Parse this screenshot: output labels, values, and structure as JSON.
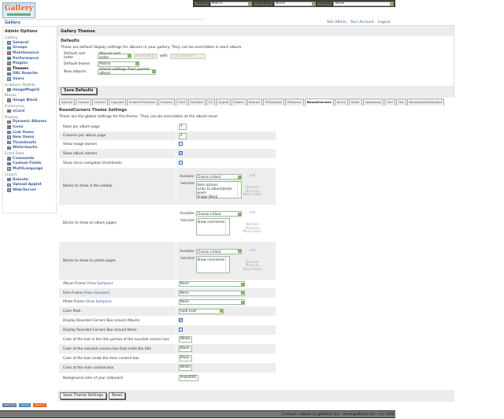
{
  "topbar": {
    "theme_label": "Theme",
    "theme_value": "Matrix",
    "colorpack_label": "ColorPack",
    "colorpack_value": "None",
    "frames_label": "Frames",
    "frames_value": "None"
  },
  "logo_text": "Gallery",
  "breadcrumb": "Gallery",
  "system_links": [
    "Site Admin",
    "Your Account",
    "Logout"
  ],
  "sidebar": {
    "title": "Admin Options",
    "groups": [
      {
        "label": "Gallery",
        "items": [
          "General",
          "Groups",
          "Maintenance",
          "Performance",
          "Plugins",
          "Themes",
          "URL Rewrite",
          "Users"
        ]
      },
      {
        "label": "Graphics Toolkits",
        "items": [
          "ImageMagick"
        ]
      },
      {
        "label": "Blocks",
        "items": [
          "Image Block"
        ]
      },
      {
        "label": "Commerce",
        "items": [
          "eCard"
        ]
      },
      {
        "label": "Display",
        "items": [
          "Dynamic Albums",
          "Icons",
          "Link Items",
          "New Items",
          "Thumbnails",
          "Watermarks"
        ]
      },
      {
        "label": "Extra Data",
        "items": [
          "Comments",
          "Custom Fields",
          "MultiLanguage"
        ]
      },
      {
        "label": "Import",
        "items": [
          "Remote",
          "Upload Applet",
          "Web/Server"
        ]
      }
    ],
    "current": "Themes"
  },
  "page_title": "Gallery Themes",
  "defaults": {
    "heading": "Defaults",
    "description": "These are default display settings for albums in your gallery. They can be overridden in each album.",
    "sort_label": "Default sort order",
    "sort_value": "Manual sort order",
    "sort_dir": "Ascending",
    "with_label": "with",
    "with_value": "« no presort »",
    "theme_label": "Default theme",
    "theme_value": "Matrix",
    "new_label": "New albums",
    "new_value": "Inherit settings from parent album",
    "save": "Save Defaults"
  },
  "tabs": [
    "Ajaxian",
    "Carbon",
    "Classic",
    "Copyleft",
    "EclecticThemeds",
    "Floatrix",
    "Fluid",
    "PortSale",
    "G1",
    "Hybrid",
    "Matrix",
    "Nature",
    "PGlightbox",
    "PGtheme",
    "RoundCorners",
    "Siriux",
    "Slider",
    "Splatbang",
    "Tion",
    "Tile",
    "WordpressEmbedded"
  ],
  "active_tab": "RoundCorners",
  "theme_settings": {
    "heading": "RoundCorners Theme Settings",
    "description": "These are the global settings for the theme. They can be overridden at the album level.",
    "rows_label": "Rows per album page",
    "rows_value": "3",
    "cols_label": "Columns per album page",
    "cols_value": "3",
    "image_owners_label": "Show image owners",
    "image_owners": false,
    "album_owners_label": "Show album owners",
    "album_owners": true,
    "micro_label": "Show micro navigation thumbnails",
    "micro": false,
    "block_available": "Available",
    "block_selected": "Selected",
    "choose": "Choose a block",
    "add": "Add",
    "remove": "Remove",
    "move_up": "Move Up",
    "move_down": "Move Down",
    "sidebar_blocks_label": "Blocks to show in the sidebar",
    "sidebar_blocks": [
      "Item actions",
      "Links to album/photo peers",
      "Image Block"
    ],
    "album_blocks_label": "Blocks to show on album pages",
    "album_blocks": [
      "Show comments"
    ],
    "photo_blocks_label": "Blocks to show on photo pages",
    "photo_blocks": [
      "Show comments"
    ],
    "view_samples": "View Samples",
    "album_frame_label": "Album Frame",
    "album_frame": "None",
    "item_frame_label": "Item Frame",
    "item_frame": "None",
    "photo_frame_label": "Photo Frame",
    "photo_frame": "None",
    "colorpack_label": "Color Pack",
    "colorpack": "Gold Leaf",
    "rc_albums_label": "Display Rounded Corners Box around Albums",
    "rc_albums": true,
    "rc_items_label": "Display Rounded Corners Box around Items",
    "rc_items": false,
    "title_text_label": "Color of the text in the title portion of the rounded corners box",
    "title_text": "White",
    "title_box_label": "Color of the rounded corners box that holds the title",
    "title_box": "Black",
    "content_text_label": "Color of the text inside the main content box",
    "content_text": "Black",
    "content_box_label": "Color of the main content box",
    "content_box": "White",
    "bg_label": "Background color of your colorpack",
    "bg": "#ebd095",
    "save": "Save Theme Settings",
    "reset": "Reset"
  },
  "badges": [
    "xhtml 1.0",
    "css 2.1",
    "gallery 2"
  ],
  "footer": "Contact: admin at gallery2.hu - www.gallery2.hu - (c) 2006"
}
